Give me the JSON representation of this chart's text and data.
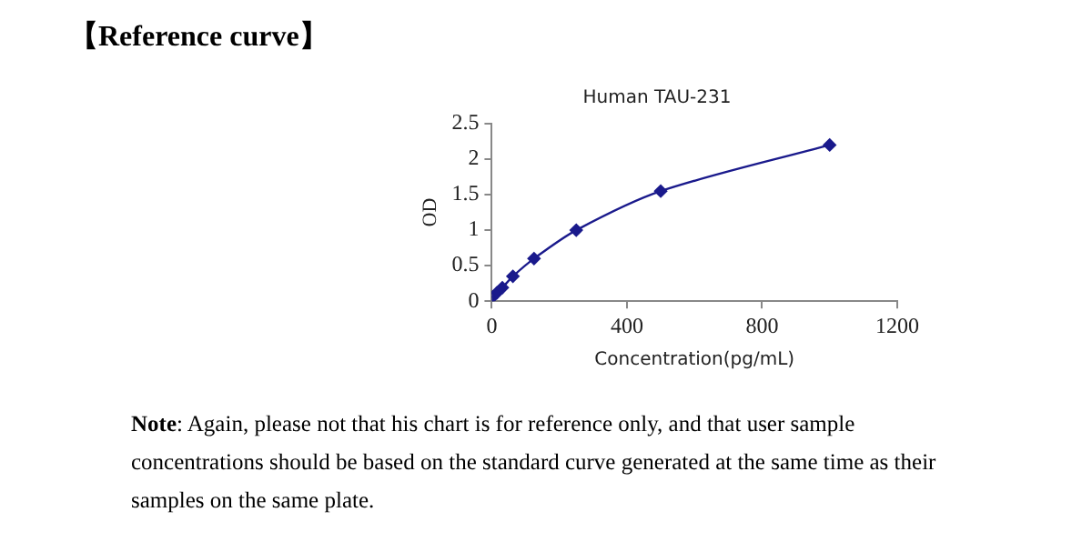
{
  "chart_data": {
    "type": "line",
    "title": "Human TAU-231",
    "xlabel": "Concentration(pg/mL)",
    "ylabel": "OD",
    "annotations": [
      "【Reference curve】",
      "Note: Again, please not that his chart is for reference only, and that user sample concentrations should be based on the standard curve generated at the same time as their samples on the same plate."
    ],
    "x": [
      0,
      15.6,
      31.25,
      62.5,
      125,
      250,
      500,
      1000
    ],
    "series": [
      {
        "color": "#1a1a8c",
        "values": [
          0.05,
          0.12,
          0.19,
          0.35,
          0.6,
          1.0,
          1.55,
          2.2
        ]
      }
    ],
    "xlim": [
      0,
      1200
    ],
    "xticks": [
      0,
      400,
      800,
      1200
    ],
    "ylim": [
      0,
      2.5
    ],
    "yticks": [
      0,
      0.5,
      1,
      1.5,
      2,
      2.5
    ],
    "grid": false,
    "legend": false,
    "marker": "diamond",
    "line_style": "solid"
  }
}
